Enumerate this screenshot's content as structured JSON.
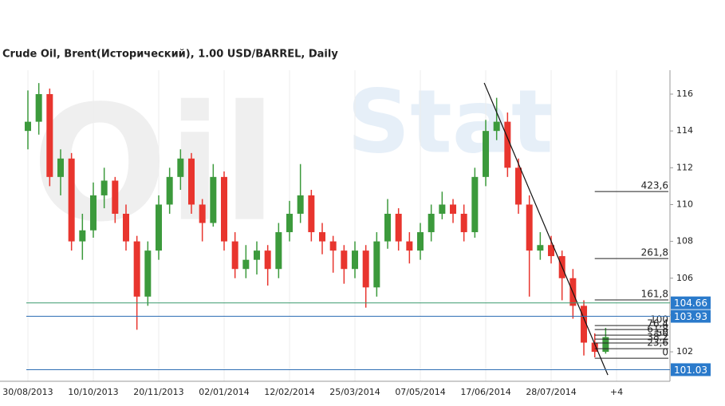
{
  "chart_data": {
    "type": "candlestick",
    "title": "Crude Oil, Brent(Исторический), 1.00 USD/BARREL, Daily",
    "watermark": [
      "Oil",
      "Stat"
    ],
    "xlim": [
      -12.8,
      294.5
    ],
    "xticks": [
      {
        "value": 0,
        "label": "30/08/2013"
      },
      {
        "value": 30,
        "label": "10/10/2013"
      },
      {
        "value": 60,
        "label": "20/11/2013"
      },
      {
        "value": 90,
        "label": "02/01/2014"
      },
      {
        "value": 120,
        "label": "12/02/2014"
      },
      {
        "value": 150,
        "label": "25/03/2014"
      },
      {
        "value": 180,
        "label": "07/05/2014"
      },
      {
        "value": 210,
        "label": "17/06/2014"
      },
      {
        "value": 240,
        "label": "28/07/2014"
      },
      {
        "value": 270,
        "label": "+4"
      }
    ],
    "ylim": [
      100.4,
      117.3
    ],
    "yticks": [
      102,
      104,
      106,
      108,
      110,
      112,
      114,
      116
    ],
    "grid": true,
    "up_color": "#3c9a3c",
    "down_color": "#e8352e",
    "x": [
      0,
      5,
      10,
      15,
      20,
      25,
      30,
      35,
      40,
      45,
      50,
      55,
      60,
      65,
      70,
      75,
      80,
      85,
      90,
      95,
      100,
      105,
      110,
      115,
      120,
      125,
      130,
      135,
      140,
      145,
      150,
      155,
      160,
      165,
      170,
      175,
      180,
      185,
      190,
      195,
      200,
      205,
      210,
      215,
      220,
      225,
      230,
      235,
      240,
      245,
      250,
      255,
      260,
      265
    ],
    "candles": [
      [
        114,
        116.2,
        113,
        114.5
      ],
      [
        114.5,
        116.6,
        113.8,
        116
      ],
      [
        116,
        116.3,
        111,
        111.5
      ],
      [
        111.5,
        113,
        110.5,
        112.5
      ],
      [
        112.5,
        112.8,
        107.5,
        108
      ],
      [
        108,
        109.5,
        107,
        108.6
      ],
      [
        108.6,
        111.2,
        108.2,
        110.5
      ],
      [
        110.5,
        112,
        109.8,
        111.3
      ],
      [
        111.3,
        111.5,
        109,
        109.5
      ],
      [
        109.5,
        110,
        107.5,
        108
      ],
      [
        108,
        108.3,
        103.2,
        105
      ],
      [
        105,
        108,
        104.5,
        107.5
      ],
      [
        107.5,
        110.5,
        107,
        110
      ],
      [
        110,
        112,
        109.5,
        111.5
      ],
      [
        111.5,
        113,
        110.8,
        112.5
      ],
      [
        112.5,
        112.8,
        109.5,
        110
      ],
      [
        110,
        110.3,
        108,
        109
      ],
      [
        109,
        112.2,
        108.8,
        111.5
      ],
      [
        111.5,
        111.8,
        107.5,
        108
      ],
      [
        108,
        108.5,
        106,
        106.5
      ],
      [
        106.5,
        107.8,
        106,
        107
      ],
      [
        107,
        108,
        106.2,
        107.5
      ],
      [
        107.5,
        107.8,
        105.6,
        106.5
      ],
      [
        106.5,
        109,
        106,
        108.5
      ],
      [
        108.5,
        110.2,
        108,
        109.5
      ],
      [
        109.5,
        112.2,
        109,
        110.5
      ],
      [
        110.5,
        110.8,
        108,
        108.5
      ],
      [
        108.5,
        109,
        107.3,
        108
      ],
      [
        108,
        108.3,
        106.3,
        107.5
      ],
      [
        107.5,
        107.8,
        105.7,
        106.5
      ],
      [
        106.5,
        108,
        106,
        107.5
      ],
      [
        107.5,
        107.8,
        104.4,
        105.5
      ],
      [
        105.5,
        108.5,
        105,
        108
      ],
      [
        108,
        110.3,
        107.6,
        109.5
      ],
      [
        109.5,
        109.8,
        107.5,
        108
      ],
      [
        108,
        108.5,
        106.8,
        107.5
      ],
      [
        107.5,
        109,
        107,
        108.5
      ],
      [
        108.5,
        110,
        108,
        109.5
      ],
      [
        109.5,
        110.7,
        109.2,
        110
      ],
      [
        110,
        110.3,
        109,
        109.5
      ],
      [
        109.5,
        110,
        108,
        108.5
      ],
      [
        108.5,
        112,
        108.2,
        111.5
      ],
      [
        111.5,
        114.6,
        111,
        114
      ],
      [
        114,
        115.8,
        113.5,
        114.5
      ],
      [
        114.5,
        115,
        111.5,
        112
      ],
      [
        112,
        112.5,
        109.5,
        110
      ],
      [
        110,
        110.5,
        105,
        107.5
      ],
      [
        107.5,
        108.5,
        107,
        107.8
      ],
      [
        107.8,
        108.3,
        106.8,
        107.2
      ],
      [
        107.2,
        107.5,
        104.8,
        106
      ],
      [
        106,
        106.5,
        103.8,
        104.5
      ],
      [
        104.5,
        104.8,
        101.8,
        102.5
      ],
      [
        102.5,
        103,
        101.7,
        102
      ],
      [
        102,
        103.3,
        101.9,
        102.8
      ]
    ],
    "price_lines": [
      {
        "value": 104.66,
        "color": "#3a9a6e",
        "tag_color": "#2a7acb"
      },
      {
        "value": 103.93,
        "color": "#2f6fb5",
        "tag_color": "#2a7acb"
      },
      {
        "value": 101.03,
        "color": "#2f6fb5",
        "tag_color": "#2a7acb"
      }
    ],
    "fib_start": 260,
    "fib_levels": [
      {
        "label": "423,6",
        "price": 110.71
      },
      {
        "label": "261,8",
        "price": 107.07
      },
      {
        "label": "161,8",
        "price": 104.82
      },
      {
        "label": "100",
        "price": 103.43
      },
      {
        "label": "76,4",
        "price": 103.21
      },
      {
        "label": "61,8",
        "price": 102.91
      },
      {
        "label": "50",
        "price": 102.69
      },
      {
        "label": "38,2",
        "price": 102.48
      },
      {
        "label": "23,6",
        "price": 102.17
      },
      {
        "label": "0",
        "price": 101.65
      }
    ],
    "trendline": {
      "x": [
        209.3,
        266
      ],
      "y": [
        116.61,
        100.74
      ]
    }
  }
}
